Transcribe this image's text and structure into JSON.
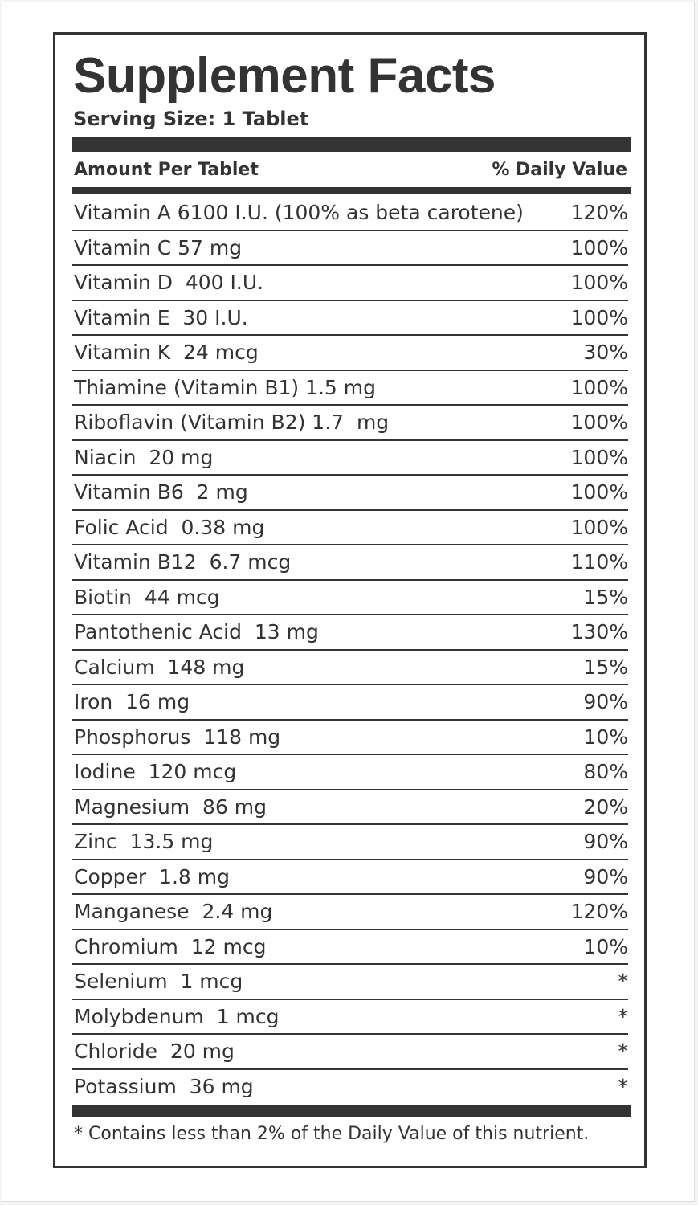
{
  "header": {
    "title": "Supplement Facts",
    "serving_size": "Serving Size: 1 Tablet"
  },
  "table": {
    "column_headers": [
      "Amount Per Tablet",
      "% Daily Value"
    ],
    "rows": [
      [
        "Vitamin A 6100 I.U. (100% as beta carotene)",
        "120%"
      ],
      [
        "Vitamin C 57 mg",
        "100%"
      ],
      [
        "Vitamin D  400 I.U.",
        "100%"
      ],
      [
        "Vitamin E  30 I.U.",
        "100%"
      ],
      [
        "Vitamin K  24 mcg",
        "30%"
      ],
      [
        "Thiamine (Vitamin B1) 1.5 mg",
        "100%"
      ],
      [
        "Riboflavin (Vitamin B2) 1.7  mg",
        "100%"
      ],
      [
        "Niacin  20 mg",
        "100%"
      ],
      [
        "Vitamin B6  2 mg",
        "100%"
      ],
      [
        "Folic Acid  0.38 mg",
        "100%"
      ],
      [
        "Vitamin B12  6.7 mcg",
        "110%"
      ],
      [
        "Biotin  44 mcg",
        "15%"
      ],
      [
        "Pantothenic Acid  13 mg",
        "130%"
      ],
      [
        "Calcium  148 mg",
        "15%"
      ],
      [
        "Iron  16 mg",
        "90%"
      ],
      [
        "Phosphorus  118 mg",
        "10%"
      ],
      [
        "Iodine  120 mcg",
        "80%"
      ],
      [
        "Magnesium  86 mg",
        "20%"
      ],
      [
        "Zinc  13.5 mg",
        "90%"
      ],
      [
        "Copper  1.8 mg",
        "90%"
      ],
      [
        "Manganese  2.4 mg",
        "120%"
      ],
      [
        "Chromium  12 mcg",
        "10%"
      ],
      [
        "Selenium  1 mcg",
        "*"
      ],
      [
        "Molybdenum  1 mcg",
        "*"
      ],
      [
        "Chloride  20 mg",
        "*"
      ],
      [
        "Potassium  36 mg",
        "*"
      ]
    ]
  },
  "footnote": "* Contains less than 2% of the Daily Value of this nutrient."
}
